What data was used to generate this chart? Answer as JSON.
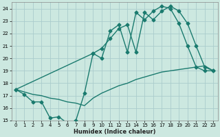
{
  "xlabel": "Humidex (Indice chaleur)",
  "bg_color": "#cce8e0",
  "grid_color": "#aacccc",
  "line_color": "#1a7a6e",
  "xlim": [
    -0.5,
    23.5
  ],
  "ylim": [
    15,
    24.5
  ],
  "xticks": [
    0,
    1,
    2,
    3,
    4,
    5,
    6,
    7,
    8,
    9,
    10,
    11,
    12,
    13,
    14,
    15,
    16,
    17,
    18,
    19,
    20,
    21,
    22,
    23
  ],
  "yticks": [
    15,
    16,
    17,
    18,
    19,
    20,
    21,
    22,
    23,
    24
  ],
  "line1_x": [
    0,
    1,
    2,
    3,
    4,
    5,
    6,
    7,
    8,
    9,
    10,
    11,
    12,
    13,
    14,
    15,
    16,
    17,
    18,
    19,
    20,
    21,
    22,
    23
  ],
  "line1_y": [
    17.5,
    17.1,
    16.5,
    16.5,
    15.2,
    15.3,
    14.8,
    15.0,
    17.2,
    20.4,
    20.0,
    22.2,
    22.7,
    20.5,
    23.7,
    23.1,
    23.8,
    24.2,
    24.0,
    22.8,
    21.0,
    19.3,
    19.0,
    19.0
  ],
  "line2_x": [
    0,
    9,
    10,
    11,
    12,
    13,
    14,
    15,
    16,
    17,
    18,
    19,
    20,
    21,
    22,
    23
  ],
  "line2_y": [
    17.5,
    20.4,
    20.8,
    21.6,
    22.4,
    22.7,
    20.5,
    23.7,
    23.1,
    23.8,
    24.2,
    23.8,
    22.8,
    21.0,
    19.3,
    19.0
  ],
  "line3_x": [
    0,
    1,
    2,
    3,
    4,
    5,
    6,
    7,
    8,
    9,
    10,
    11,
    12,
    13,
    14,
    15,
    16,
    17,
    18,
    19,
    20,
    21,
    22,
    23
  ],
  "line3_y": [
    17.5,
    17.3,
    17.1,
    17.0,
    16.8,
    16.7,
    16.5,
    16.4,
    16.2,
    16.8,
    17.2,
    17.5,
    17.8,
    18.0,
    18.3,
    18.5,
    18.7,
    18.9,
    19.0,
    19.1,
    19.2,
    19.3,
    19.4,
    19.0
  ],
  "marker": "D",
  "markersize": 2.5,
  "linewidth": 1.0
}
